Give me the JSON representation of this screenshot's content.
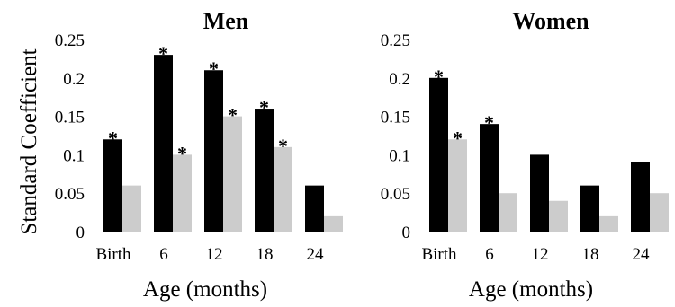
{
  "figure": {
    "ylabel": "Standard Coefficient"
  },
  "chart_data": [
    {
      "type": "bar",
      "title": "Men",
      "xlabel": "Age (months)",
      "ylabel": "Standard Coefficient",
      "ylim": [
        0,
        0.25
      ],
      "yticks": [
        "0",
        "0.05",
        "0.1",
        "0.15",
        "0.2",
        "0.25"
      ],
      "categories": [
        "Birth",
        "6",
        "12",
        "18",
        "24"
      ],
      "grid": false,
      "legend": "none",
      "series": [
        {
          "color": "#000000",
          "values": [
            0.12,
            0.23,
            0.21,
            0.16,
            0.06
          ],
          "significant": [
            true,
            true,
            true,
            true,
            false
          ]
        },
        {
          "color": "#cccccc",
          "values": [
            0.06,
            0.1,
            0.15,
            0.11,
            0.02
          ],
          "significant": [
            false,
            true,
            true,
            true,
            false
          ]
        }
      ],
      "marker": "*"
    },
    {
      "type": "bar",
      "title": "Women",
      "xlabel": "Age (months)",
      "ylabel": "",
      "ylim": [
        0,
        0.25
      ],
      "yticks": [
        "0",
        "0.05",
        "0.1",
        "0.15",
        "0.2",
        "0.25"
      ],
      "categories": [
        "Birth",
        "6",
        "12",
        "18",
        "24"
      ],
      "grid": false,
      "legend": "none",
      "series": [
        {
          "color": "#000000",
          "values": [
            0.2,
            0.14,
            0.1,
            0.06,
            0.09
          ],
          "significant": [
            true,
            true,
            false,
            false,
            false
          ]
        },
        {
          "color": "#cccccc",
          "values": [
            0.12,
            0.05,
            0.04,
            0.02,
            0.05
          ],
          "significant": [
            true,
            false,
            false,
            false,
            false
          ]
        }
      ],
      "marker": "*"
    }
  ]
}
